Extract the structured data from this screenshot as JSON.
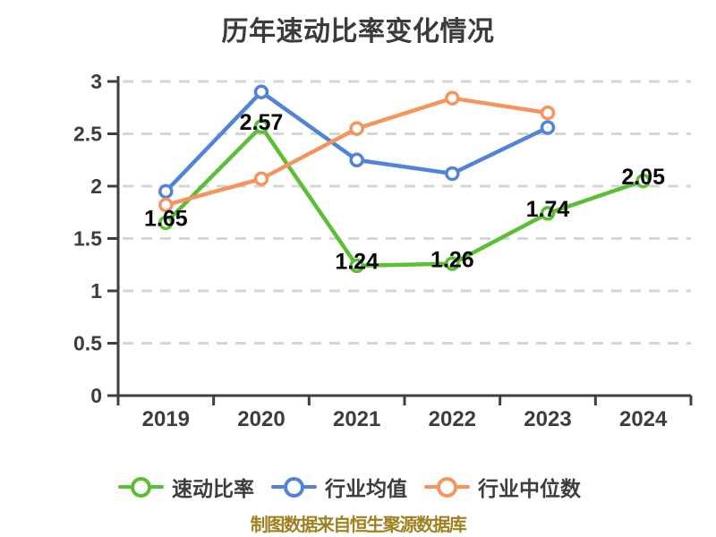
{
  "title": "历年速动比率变化情况",
  "footer": "制图数据来自恒生聚源数据库",
  "colors": {
    "quick_ratio": "#5cbe37",
    "industry_avg": "#5283d9",
    "industry_median": "#f6945f",
    "grid": "#d6d6d6",
    "axis": "#3f3f3f",
    "axis_text": "#3d3d3d",
    "data_label": "#060606",
    "title_text": "#3b3b3b",
    "footer_text": "#a0801f",
    "marker_fill": "#ffffff"
  },
  "chart_data": {
    "type": "line",
    "title": "历年速动比率变化情况",
    "x": [
      "2019",
      "2020",
      "2021",
      "2022",
      "2023",
      "2024"
    ],
    "series": [
      {
        "id": "quick-ratio",
        "name": "速动比率",
        "color": "#5cbe37",
        "values": [
          1.65,
          2.57,
          1.24,
          1.26,
          1.74,
          2.05
        ],
        "labels": [
          "1.65",
          "2.57",
          "1.24",
          "1.26",
          "1.74",
          "2.05"
        ],
        "show_labels": true
      },
      {
        "id": "industry-average",
        "name": "行业均值",
        "color": "#5283d9",
        "values": [
          1.95,
          2.9,
          2.25,
          2.12,
          2.56,
          null
        ],
        "show_labels": false
      },
      {
        "id": "industry-median",
        "name": "行业中位数",
        "color": "#f6945f",
        "values": [
          1.82,
          2.07,
          2.55,
          2.84,
          2.7,
          null
        ],
        "show_labels": false
      }
    ],
    "ylim": [
      0,
      3
    ],
    "yticks": [
      0,
      0.5,
      1,
      1.5,
      2,
      2.5,
      3
    ],
    "ytick_labels": [
      "0",
      "0.5",
      "1",
      "1.5",
      "2",
      "2.5",
      "3"
    ],
    "grid": "dashed-horizontal",
    "legend_position": "bottom",
    "marker_style": "circle-white-fill"
  }
}
